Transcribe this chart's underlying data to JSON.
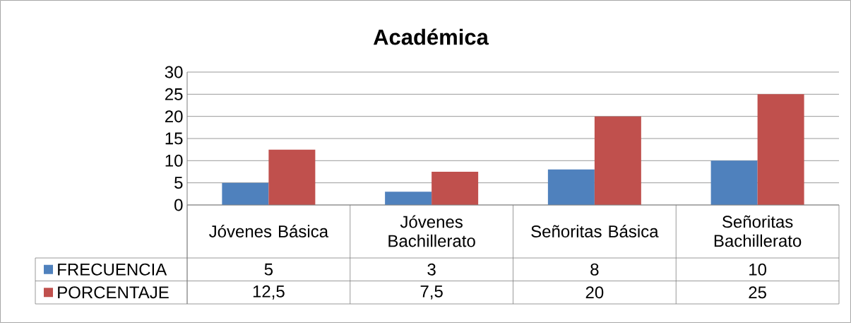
{
  "chart_data": {
    "type": "bar",
    "title": "Académica",
    "categories": [
      "Jóvenes Básica",
      "Jóvenes Bachillerato",
      "Señoritas Básica",
      "Señoritas Bachillerato"
    ],
    "series": [
      {
        "name": "FRECUENCIA",
        "color": "#4f81bd",
        "values": [
          5,
          3,
          8,
          10
        ],
        "value_labels": [
          "5",
          "3",
          "8",
          "10"
        ]
      },
      {
        "name": "PORCENTAJE",
        "color": "#c0504d",
        "values": [
          12.5,
          7.5,
          20,
          25
        ],
        "value_labels": [
          "12,5",
          "7,5",
          "20",
          "25"
        ]
      }
    ],
    "ylim": [
      0,
      30
    ],
    "yticks": [
      0,
      5,
      10,
      15,
      20,
      25,
      30
    ],
    "grid": "y",
    "legend": "bottom left"
  }
}
